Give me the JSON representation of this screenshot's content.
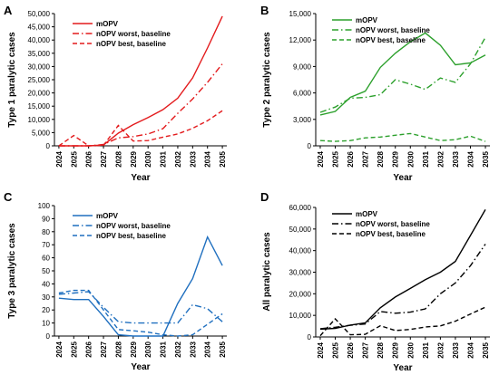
{
  "chart_data": [
    {
      "panel_label": "A",
      "type": "line",
      "ylabel": "Type 1 paralytic cases",
      "xlabel": "Year",
      "x": [
        "2024",
        "2025",
        "2026",
        "2027",
        "2028",
        "2029",
        "2030",
        "2031",
        "2032",
        "2033",
        "2034",
        "2035"
      ],
      "ylim": [
        0,
        50000
      ],
      "yticks": [
        0,
        5000,
        10000,
        15000,
        20000,
        25000,
        30000,
        35000,
        40000,
        45000,
        50000
      ],
      "ytick_labels": [
        "0",
        "5,000",
        "10,000",
        "15,000",
        "20,000",
        "25,000",
        "30,000",
        "35,000",
        "40,000",
        "45,000",
        "50,000"
      ],
      "legend_position": "top-left",
      "color": "#e31a1c",
      "series": [
        {
          "name": "mOPV",
          "style": "solid",
          "values": [
            0,
            0,
            0,
            300,
            4800,
            8000,
            10700,
            13700,
            18000,
            25700,
            37000,
            49000
          ]
        },
        {
          "name": "nOPV worst, baseline",
          "style": "dashdot",
          "values": [
            0,
            0,
            0,
            500,
            3000,
            3500,
            4500,
            6500,
            12300,
            17700,
            24000,
            31000
          ]
        },
        {
          "name": "nOPV best, baseline",
          "style": "dashed",
          "values": [
            0,
            3900,
            0,
            200,
            7700,
            1800,
            2000,
            3300,
            4500,
            6600,
            9500,
            13300
          ]
        }
      ]
    },
    {
      "panel_label": "B",
      "type": "line",
      "ylabel": "Type 2 paralytic cases",
      "xlabel": "Year",
      "x": [
        "2024",
        "2025",
        "2026",
        "2027",
        "2028",
        "2029",
        "2030",
        "2031",
        "2032",
        "2033",
        "2034",
        "2035"
      ],
      "ylim": [
        0,
        15000
      ],
      "yticks": [
        0,
        3000,
        6000,
        9000,
        12000,
        15000
      ],
      "ytick_labels": [
        "0",
        "3,000",
        "6,000",
        "9,000",
        "12,000",
        "15,000"
      ],
      "legend_position": "top-left",
      "color": "#2ca02c",
      "series": [
        {
          "name": "mOPV",
          "style": "solid",
          "values": [
            3500,
            3900,
            5500,
            6200,
            8900,
            10500,
            11800,
            12800,
            11400,
            9200,
            9400,
            10300
          ]
        },
        {
          "name": "nOPV worst, baseline",
          "style": "dashdot",
          "values": [
            3800,
            4400,
            5400,
            5500,
            5800,
            7500,
            7000,
            6400,
            7700,
            7200,
            9300,
            12300
          ]
        },
        {
          "name": "nOPV best, baseline",
          "style": "dashed",
          "values": [
            600,
            500,
            600,
            900,
            1000,
            1200,
            1400,
            1000,
            600,
            700,
            1100,
            500
          ]
        }
      ]
    },
    {
      "panel_label": "C",
      "type": "line",
      "ylabel": "Type 3 paralytic cases",
      "xlabel": "Year",
      "x": [
        "2024",
        "2025",
        "2026",
        "2027",
        "2028",
        "2029",
        "2030",
        "2031",
        "2032",
        "2033",
        "2034",
        "2035"
      ],
      "ylim": [
        0,
        100
      ],
      "yticks": [
        0,
        10,
        20,
        30,
        40,
        50,
        60,
        70,
        80,
        90,
        100
      ],
      "ytick_labels": [
        "0",
        "10",
        "20",
        "30",
        "40",
        "50",
        "60",
        "70",
        "80",
        "90",
        "100"
      ],
      "legend_position": "top-left",
      "color": "#1f6fbf",
      "series": [
        {
          "name": "mOPV",
          "style": "solid",
          "values": [
            29,
            28,
            28,
            15,
            1,
            0,
            0,
            0,
            25,
            44,
            76,
            54
          ]
        },
        {
          "name": "nOPV worst, baseline",
          "style": "dashdot",
          "values": [
            32,
            33,
            34,
            22,
            11,
            10,
            10,
            10,
            10,
            24,
            21,
            11
          ]
        },
        {
          "name": "nOPV best, baseline",
          "style": "dashed",
          "values": [
            33,
            35,
            35,
            20,
            5,
            4,
            3,
            1,
            0,
            1,
            9,
            17
          ]
        }
      ]
    },
    {
      "panel_label": "D",
      "type": "line",
      "ylabel": "All paralytic cases",
      "xlabel": "Year",
      "x": [
        "2024",
        "2025",
        "2026",
        "2027",
        "2028",
        "2029",
        "2030",
        "2031",
        "2032",
        "2033",
        "2034",
        "2035"
      ],
      "ylim": [
        0,
        60000
      ],
      "yticks": [
        0,
        10000,
        20000,
        30000,
        40000,
        50000,
        60000
      ],
      "ytick_labels": [
        "0",
        "10,000",
        "20,000",
        "30,000",
        "40,000",
        "50,000",
        "60,000"
      ],
      "legend_position": "top-left",
      "color": "#000000",
      "series": [
        {
          "name": "mOPV",
          "style": "solid",
          "values": [
            3600,
            4000,
            5500,
            6500,
            13500,
            18500,
            22500,
            26500,
            30000,
            35000,
            47000,
            59000
          ]
        },
        {
          "name": "nOPV worst, baseline",
          "style": "dashdot",
          "values": [
            3800,
            4500,
            5400,
            6000,
            11800,
            11000,
            11500,
            13000,
            20000,
            25000,
            33000,
            43000
          ]
        },
        {
          "name": "nOPV best, baseline",
          "style": "dashed",
          "values": [
            600,
            8400,
            1000,
            1200,
            5200,
            3000,
            3500,
            4600,
            5100,
            7300,
            10600,
            13800
          ]
        }
      ]
    }
  ]
}
